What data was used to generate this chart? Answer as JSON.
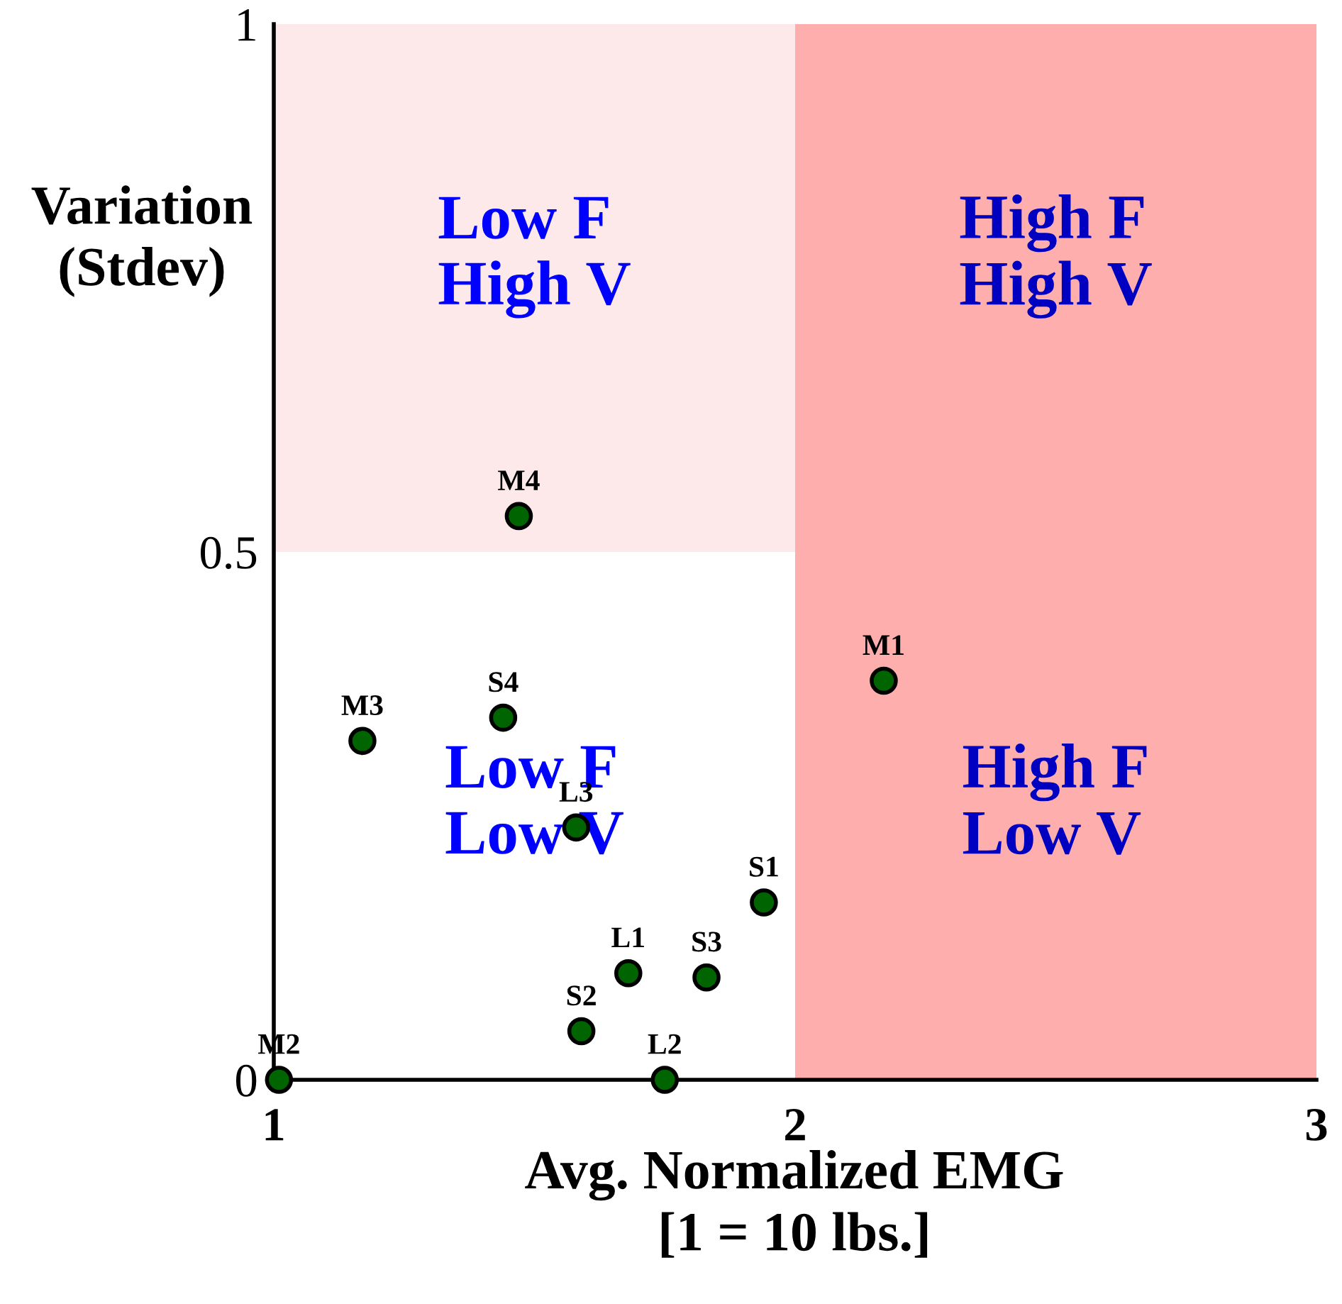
{
  "chart_data": {
    "type": "scatter",
    "xlabel": "Avg. Normalized EMG\n[1 = 10 lbs.]",
    "ylabel": "Variation\n(Stdev)",
    "series": [
      {
        "color": "#006400",
        "x": [
          2.17,
          1.01,
          1.17,
          1.47,
          1.94,
          1.59,
          1.83,
          1.44,
          1.68,
          1.75,
          1.58
        ],
        "values": [
          0.378,
          0.0,
          0.321,
          0.534,
          0.168,
          0.046,
          0.097,
          0.343,
          0.101,
          0.0,
          0.239
        ]
      }
    ],
    "annotations": [
      {
        "text": "M1",
        "x": 2.17,
        "y": 0.378
      },
      {
        "text": "M2",
        "x": 1.01,
        "y": 0.0
      },
      {
        "text": "M3",
        "x": 1.17,
        "y": 0.321
      },
      {
        "text": "M4",
        "x": 1.47,
        "y": 0.534
      },
      {
        "text": "S1",
        "x": 1.94,
        "y": 0.168
      },
      {
        "text": "S2",
        "x": 1.59,
        "y": 0.046
      },
      {
        "text": "S3",
        "x": 1.83,
        "y": 0.097
      },
      {
        "text": "S4",
        "x": 1.44,
        "y": 0.343
      },
      {
        "text": "L1",
        "x": 1.68,
        "y": 0.101
      },
      {
        "text": "L2",
        "x": 1.75,
        "y": 0.0
      },
      {
        "text": "L3",
        "x": 1.58,
        "y": 0.239
      },
      "Low F\nHigh V",
      "High F\nHigh V",
      "Low F\nLow V",
      "High F\nLow V"
    ],
    "bands": [
      {
        "axis": "y",
        "from": 0.5,
        "to": 1,
        "color": "#fde9e9"
      },
      {
        "axis": "x",
        "from": 2,
        "to": 3,
        "color": "#ffaeae"
      }
    ],
    "xlim": [
      1,
      3
    ],
    "xticks": [
      1,
      2,
      3
    ],
    "ylim": [
      0,
      1
    ],
    "yticks": [
      0,
      0.5,
      1
    ],
    "grid": false,
    "marker": "circle"
  }
}
